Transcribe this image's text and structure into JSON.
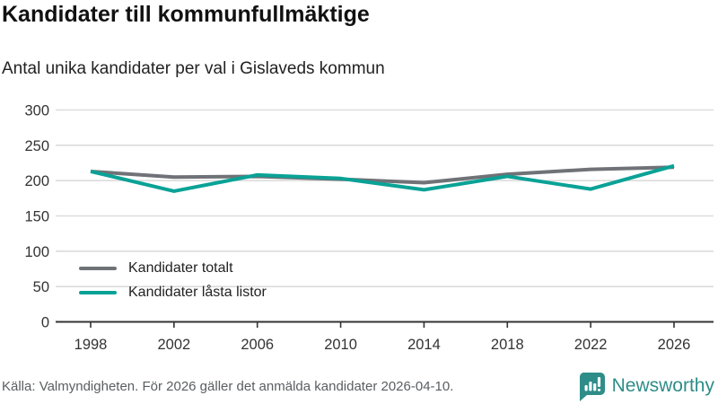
{
  "header": {
    "title": "Kandidater till kommunfullmäktige",
    "subtitle": "Antal unika kandidater per val i Gislaveds kommun"
  },
  "chart_data": {
    "type": "line",
    "x": [
      1998,
      2002,
      2006,
      2010,
      2014,
      2018,
      2022,
      2026
    ],
    "series": [
      {
        "name": "Kandidater totalt",
        "color": "#6f7276",
        "values": [
          213,
          205,
          206,
          202,
          197,
          209,
          216,
          219
        ]
      },
      {
        "name": "Kandidater låsta listor",
        "color": "#0aa296",
        "values": [
          213,
          185,
          208,
          203,
          187,
          206,
          188,
          221
        ]
      }
    ],
    "title": "Kandidater till kommunfullmäktige",
    "subtitle": "Antal unika kandidater per val i Gislaveds kommun",
    "xlabel": "",
    "ylabel": "",
    "ylim": [
      0,
      300
    ],
    "yticks": [
      0,
      50,
      100,
      150,
      200,
      250,
      300
    ],
    "grid": true,
    "legend_position": "inside-bottom-left"
  },
  "footer": {
    "source": "Källa: Valmyndigheten. För 2026 gäller det anmälda kandidater 2026-04-10.",
    "brand": "Newsworthy"
  },
  "colors": {
    "grid": "#dcdcdc",
    "axis": "#333333",
    "tick_label": "#333333",
    "brand_teal": "#2e8d89"
  }
}
